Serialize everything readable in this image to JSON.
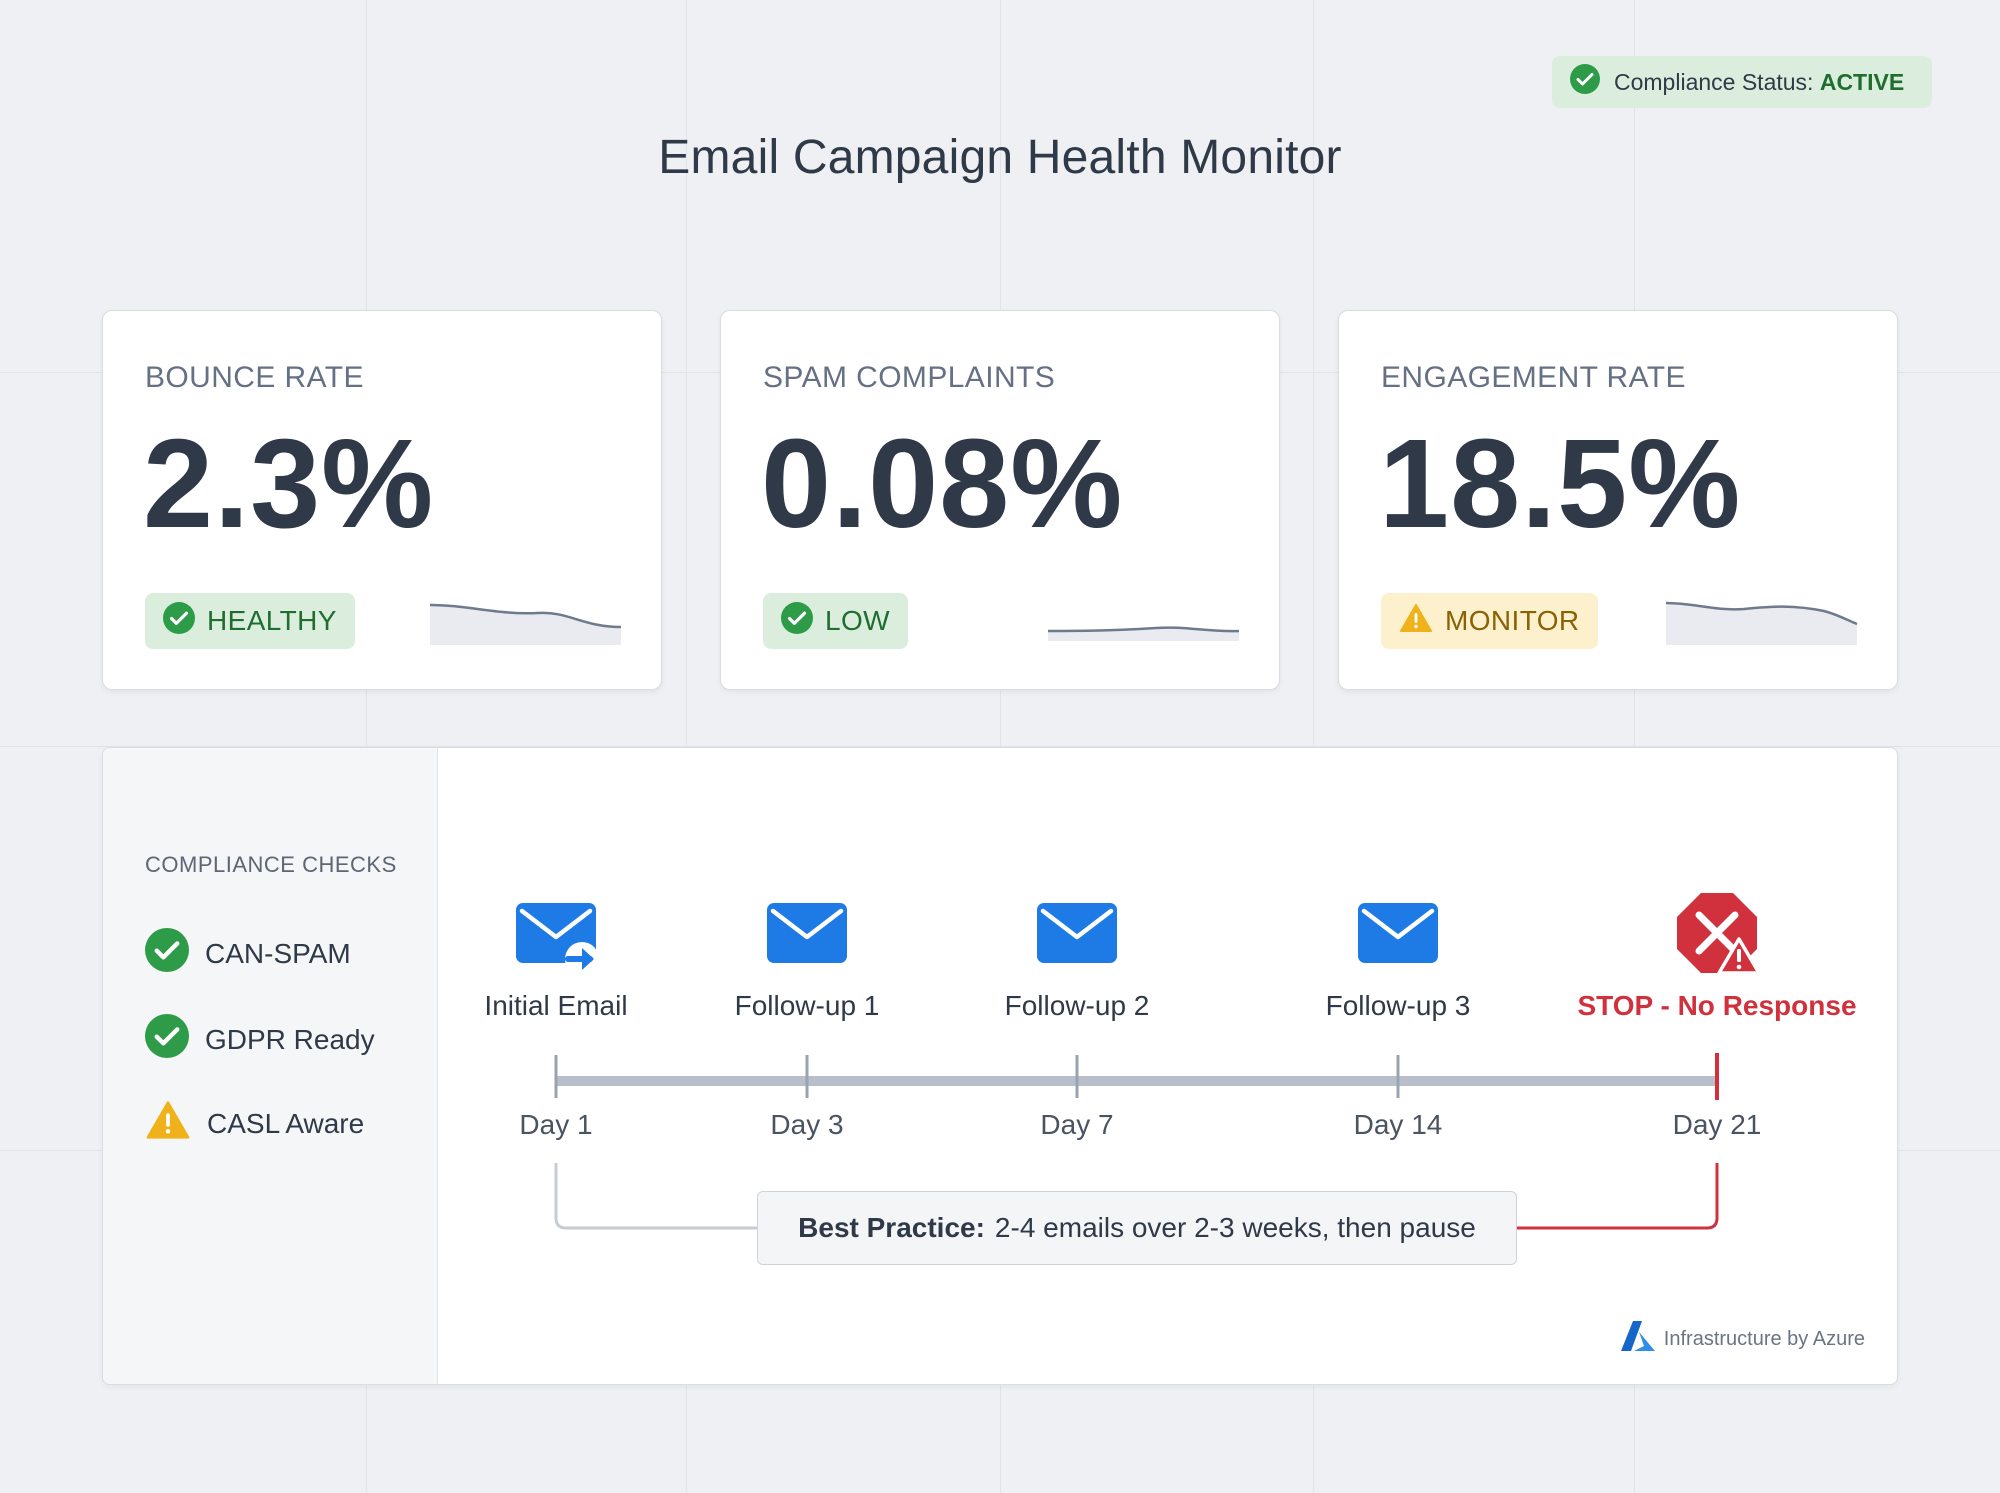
{
  "header": {
    "title": "Email Campaign Health Monitor",
    "compliance_prefix": "Compliance Status:",
    "compliance_value": "ACTIVE"
  },
  "metrics": [
    {
      "label": "BOUNCE RATE",
      "value": "2.3%",
      "status": "HEALTHY",
      "status_type": "ok"
    },
    {
      "label": "SPAM COMPLAINTS",
      "value": "0.08%",
      "status": "LOW",
      "status_type": "ok"
    },
    {
      "label": "ENGAGEMENT RATE",
      "value": "18.5%",
      "status": "MONITOR",
      "status_type": "warning"
    }
  ],
  "compliance": {
    "title": "COMPLIANCE CHECKS",
    "items": [
      {
        "label": "CAN-SPAM",
        "state": "pass"
      },
      {
        "label": "GDPR Ready",
        "state": "pass"
      },
      {
        "label": "CASL Aware",
        "state": "warning"
      }
    ]
  },
  "timeline": {
    "steps": [
      {
        "label": "Initial Email",
        "day": "Day 1",
        "icon": "email-send-icon"
      },
      {
        "label": "Follow-up 1",
        "day": "Day 3",
        "icon": "email-icon"
      },
      {
        "label": "Follow-up 2",
        "day": "Day 7",
        "icon": "email-icon"
      },
      {
        "label": "Follow-up 3",
        "day": "Day 14",
        "icon": "email-icon"
      },
      {
        "label": "STOP - No Response",
        "day": "Day 21",
        "icon": "stop-icon"
      }
    ],
    "best_practice_label": "Best Practice:",
    "best_practice_text": "2-4 emails over 2-3 weeks, then pause"
  },
  "footer": {
    "infrastructure": "Infrastructure by Azure"
  },
  "colors": {
    "ok": "#2e9b48",
    "warning": "#f0b21a",
    "stop": "#d0313d",
    "email_blue": "#1e7be6"
  }
}
